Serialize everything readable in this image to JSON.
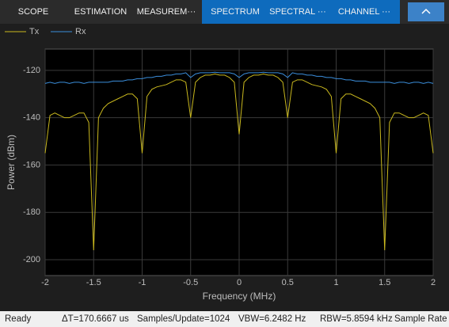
{
  "toolbar": {
    "tabs": [
      "SCOPE",
      "ESTIMATION",
      "MEASUREM···",
      "SPECTRUM",
      "SPECTRAL ···",
      "CHANNEL ···"
    ]
  },
  "chart_data": {
    "type": "line",
    "xlabel": "Frequency (MHz)",
    "ylabel": "Power (dBm)",
    "x": [
      -2,
      -1.95,
      -1.9,
      -1.85,
      -1.8,
      -1.75,
      -1.7,
      -1.65,
      -1.6,
      -1.55,
      -1.5,
      -1.45,
      -1.4,
      -1.35,
      -1.3,
      -1.25,
      -1.2,
      -1.15,
      -1.1,
      -1.05,
      -1,
      -0.95,
      -0.9,
      -0.85,
      -0.8,
      -0.75,
      -0.7,
      -0.65,
      -0.6,
      -0.55,
      -0.5,
      -0.45,
      -0.4,
      -0.35,
      -0.3,
      -0.25,
      -0.2,
      -0.15,
      -0.1,
      -0.05,
      0,
      0.05,
      0.1,
      0.15,
      0.2,
      0.25,
      0.3,
      0.35,
      0.4,
      0.45,
      0.5,
      0.55,
      0.6,
      0.65,
      0.7,
      0.75,
      0.8,
      0.85,
      0.9,
      0.95,
      1,
      1.05,
      1.1,
      1.15,
      1.2,
      1.25,
      1.3,
      1.35,
      1.4,
      1.45,
      1.5,
      1.55,
      1.6,
      1.65,
      1.7,
      1.75,
      1.8,
      1.85,
      1.9,
      1.95,
      2
    ],
    "series": [
      {
        "name": "Tx",
        "color": "#c9b81e",
        "values": [
          -155,
          -139,
          -138,
          -139,
          -140,
          -140,
          -139,
          -138,
          -138,
          -142,
          -196,
          -140,
          -136,
          -134,
          -133,
          -132,
          -131,
          -130,
          -130,
          -132,
          -155,
          -131,
          -128,
          -127,
          -126.5,
          -126,
          -125,
          -124,
          -124,
          -125,
          -140,
          -125,
          -123,
          -122,
          -122,
          -121.5,
          -122,
          -122,
          -123,
          -125,
          -147,
          -125,
          -123,
          -122,
          -122,
          -121.5,
          -122,
          -122,
          -123,
          -125,
          -140,
          -125,
          -124,
          -124,
          -125,
          -126,
          -126.5,
          -127,
          -128,
          -131,
          -155,
          -132,
          -130,
          -130,
          -131,
          -132,
          -133,
          -134,
          -136,
          -140,
          -196,
          -142,
          -138,
          -138,
          -139,
          -140,
          -140,
          -139,
          -138,
          -139,
          -155
        ]
      },
      {
        "name": "Rx",
        "color": "#3b8edb",
        "values": [
          -125.5,
          -125,
          -125.5,
          -125,
          -125,
          -125.5,
          -125,
          -125,
          -125.5,
          -125,
          -125,
          -125,
          -125,
          -125,
          -124.5,
          -124.5,
          -124.5,
          -124,
          -124,
          -123.5,
          -123.5,
          -123,
          -123,
          -122.5,
          -122.5,
          -122,
          -122,
          -121.5,
          -121.5,
          -121,
          -123,
          -121.5,
          -121,
          -121,
          -121,
          -120.8,
          -121,
          -121,
          -121,
          -121.5,
          -123,
          -121.5,
          -121,
          -121,
          -121,
          -120.8,
          -121,
          -121,
          -121,
          -121.5,
          -123,
          -121,
          -121.5,
          -121.5,
          -122,
          -122,
          -122.5,
          -122.5,
          -123,
          -123,
          -123.5,
          -123.5,
          -124,
          -124,
          -124.5,
          -124.5,
          -124.5,
          -125,
          -125,
          -125,
          -125,
          -125,
          -125.5,
          -125,
          -125,
          -125.5,
          -125,
          -125,
          -125.5,
          -125,
          -125.5
        ]
      }
    ],
    "xlim": [
      -2,
      2
    ],
    "ylim": [
      -206.7,
      -111
    ],
    "xticks": [
      -2,
      -1.5,
      -1,
      -0.5,
      0,
      0.5,
      1,
      1.5,
      2
    ],
    "yticks": [
      -200,
      -180,
      -160,
      -140,
      -120
    ],
    "grid": true
  },
  "status_bar": {
    "items": [
      "Ready",
      "ΔT=170.6667 us",
      "Samples/Update=1024",
      "VBW=6.2482 Hz",
      "RBW=5.8594 kHz",
      "Sample Rate"
    ]
  }
}
